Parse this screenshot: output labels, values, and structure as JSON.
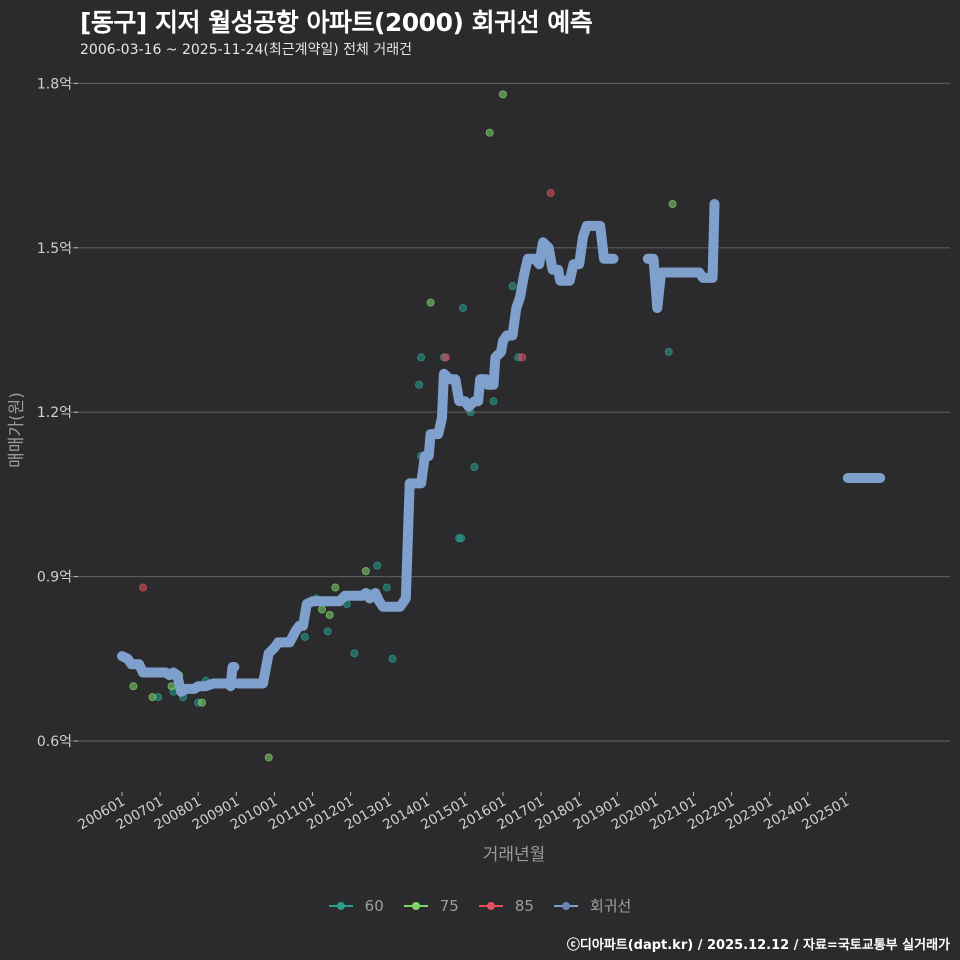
{
  "header": {
    "title": "[동구] 지저 월성공항 아파트(2000) 회귀선 예측",
    "subtitle": "2006-03-16 ~ 2025-11-24(최근계약일) 전체 거래건"
  },
  "footer": {
    "credit": "ⓒ디아파트(dapt.kr) / 2025.12.12 / 자료=국토교통부 실거래가"
  },
  "legend": {
    "items": [
      {
        "label": "60",
        "color": "#2a9d8f"
      },
      {
        "label": "75",
        "color": "#7ed36b"
      },
      {
        "label": "85",
        "color": "#e0505f"
      },
      {
        "label": "회귀선",
        "color": "#7f9fcc"
      }
    ]
  },
  "colors": {
    "background": "#2b2b2d",
    "grid": "#5a5a5a",
    "regression": "#7f9fcc",
    "s60": "#2a9d8f",
    "s75": "#7ed36b",
    "s85": "#e0505f"
  },
  "chart_data": {
    "type": "scatter",
    "title": "[동구] 지저 월성공항 아파트(2000) 회귀선 예측",
    "subtitle": "2006-03-16 ~ 2025-11-24(최근계약일) 전체 거래건",
    "xlabel": "거래년월",
    "ylabel": "매매가(원)",
    "y_ticks": [
      {
        "value": 0.6,
        "label": "0.6억"
      },
      {
        "value": 0.9,
        "label": "0.9억"
      },
      {
        "value": 1.2,
        "label": "1.2억"
      },
      {
        "value": 1.5,
        "label": "1.5억"
      },
      {
        "value": 1.8,
        "label": "1.8억"
      }
    ],
    "x_ticks": [
      "200601",
      "200701",
      "200801",
      "200901",
      "201001",
      "201101",
      "201201",
      "201301",
      "201401",
      "201501",
      "201601",
      "201701",
      "201801",
      "201901",
      "202001",
      "202101",
      "202201",
      "202301",
      "202401",
      "202501"
    ],
    "ylim": [
      0.52,
      1.85
    ],
    "grid": true,
    "legend_position": "bottom",
    "units": "억원",
    "series": [
      {
        "name": "60",
        "type": "scatter",
        "points": [
          [
            2006.95,
            0.68
          ],
          [
            2007.35,
            0.69
          ],
          [
            2007.6,
            0.68
          ],
          [
            2008.0,
            0.67
          ],
          [
            2008.2,
            0.71
          ],
          [
            2010.8,
            0.79
          ],
          [
            2011.1,
            0.86
          ],
          [
            2011.4,
            0.8
          ],
          [
            2011.9,
            0.85
          ],
          [
            2012.1,
            0.76
          ],
          [
            2012.5,
            0.87
          ],
          [
            2012.7,
            0.92
          ],
          [
            2012.95,
            0.88
          ],
          [
            2013.1,
            0.75
          ],
          [
            2013.85,
            1.12
          ],
          [
            2013.85,
            1.3
          ],
          [
            2013.8,
            1.25
          ],
          [
            2014.45,
            1.3
          ],
          [
            2014.85,
            0.97
          ],
          [
            2014.9,
            0.97
          ],
          [
            2014.95,
            1.39
          ],
          [
            2015.15,
            1.2
          ],
          [
            2015.25,
            1.1
          ],
          [
            2015.75,
            1.22
          ],
          [
            2016.4,
            1.3
          ],
          [
            2016.25,
            1.43
          ],
          [
            2020.35,
            1.31
          ]
        ]
      },
      {
        "name": "75",
        "type": "scatter",
        "points": [
          [
            2006.3,
            0.7
          ],
          [
            2006.8,
            0.68
          ],
          [
            2007.3,
            0.7
          ],
          [
            2008.1,
            0.67
          ],
          [
            2009.85,
            0.57
          ],
          [
            2011.25,
            0.84
          ],
          [
            2011.45,
            0.83
          ],
          [
            2011.6,
            0.88
          ],
          [
            2012.4,
            0.91
          ],
          [
            2014.1,
            1.4
          ],
          [
            2015.65,
            1.71
          ],
          [
            2016.0,
            1.78
          ],
          [
            2019.95,
            1.48
          ],
          [
            2020.45,
            1.58
          ],
          [
            2007.5,
            0.72
          ]
        ]
      },
      {
        "name": "85",
        "type": "scatter",
        "points": [
          [
            2006.55,
            0.88
          ],
          [
            2014.5,
            1.3
          ],
          [
            2016.5,
            1.3
          ],
          [
            2017.25,
            1.6
          ]
        ]
      },
      {
        "name": "회귀선",
        "type": "line",
        "segments": [
          [
            [
              2006.0,
              0.755
            ],
            [
              2006.15,
              0.75
            ],
            [
              2006.25,
              0.74
            ],
            [
              2006.45,
              0.74
            ],
            [
              2006.55,
              0.725
            ],
            [
              2007.05,
              0.725
            ],
            [
              2007.15,
              0.725
            ],
            [
              2007.25,
              0.72
            ],
            [
              2007.35,
              0.725
            ],
            [
              2007.45,
              0.72
            ],
            [
              2007.55,
              0.69
            ],
            [
              2007.7,
              0.695
            ],
            [
              2007.9,
              0.695
            ],
            [
              2008.0,
              0.7
            ],
            [
              2008.2,
              0.7
            ],
            [
              2008.4,
              0.705
            ],
            [
              2008.8,
              0.705
            ],
            [
              2008.85,
              0.7
            ],
            [
              2008.9,
              0.735
            ],
            [
              2008.95,
              0.735
            ]
          ],
          [
            [
              2009.05,
              0.705
            ],
            [
              2009.6,
              0.705
            ],
            [
              2009.7,
              0.705
            ],
            [
              2009.85,
              0.76
            ],
            [
              2010.0,
              0.77
            ],
            [
              2010.1,
              0.78
            ],
            [
              2010.4,
              0.78
            ],
            [
              2010.55,
              0.8
            ],
            [
              2010.65,
              0.81
            ],
            [
              2010.75,
              0.81
            ],
            [
              2010.85,
              0.85
            ],
            [
              2011.0,
              0.855
            ],
            [
              2011.7,
              0.855
            ],
            [
              2011.85,
              0.865
            ],
            [
              2012.0,
              0.865
            ],
            [
              2012.3,
              0.865
            ],
            [
              2012.4,
              0.87
            ],
            [
              2012.5,
              0.86
            ],
            [
              2012.65,
              0.87
            ],
            [
              2012.75,
              0.855
            ],
            [
              2012.85,
              0.845
            ],
            [
              2013.3,
              0.845
            ],
            [
              2013.45,
              0.86
            ],
            [
              2013.55,
              1.07
            ],
            [
              2013.85,
              1.07
            ],
            [
              2013.95,
              1.12
            ],
            [
              2014.05,
              1.12
            ],
            [
              2014.1,
              1.16
            ],
            [
              2014.3,
              1.16
            ],
            [
              2014.4,
              1.19
            ],
            [
              2014.45,
              1.27
            ],
            [
              2014.6,
              1.26
            ],
            [
              2014.75,
              1.26
            ],
            [
              2014.85,
              1.22
            ],
            [
              2015.0,
              1.22
            ],
            [
              2015.1,
              1.21
            ],
            [
              2015.25,
              1.22
            ],
            [
              2015.35,
              1.22
            ],
            [
              2015.4,
              1.26
            ],
            [
              2015.55,
              1.26
            ],
            [
              2015.6,
              1.25
            ],
            [
              2015.75,
              1.25
            ],
            [
              2015.8,
              1.3
            ],
            [
              2015.95,
              1.31
            ],
            [
              2016.0,
              1.33
            ],
            [
              2016.1,
              1.34
            ],
            [
              2016.25,
              1.34
            ],
            [
              2016.35,
              1.39
            ],
            [
              2016.45,
              1.41
            ],
            [
              2016.55,
              1.45
            ],
            [
              2016.65,
              1.48
            ],
            [
              2016.85,
              1.48
            ],
            [
              2016.95,
              1.47
            ],
            [
              2017.05,
              1.51
            ],
            [
              2017.2,
              1.5
            ],
            [
              2017.3,
              1.46
            ],
            [
              2017.45,
              1.46
            ],
            [
              2017.5,
              1.44
            ],
            [
              2017.75,
              1.44
            ],
            [
              2017.85,
              1.47
            ],
            [
              2018.0,
              1.47
            ],
            [
              2018.1,
              1.52
            ],
            [
              2018.2,
              1.54
            ],
            [
              2018.55,
              1.54
            ],
            [
              2018.65,
              1.48
            ],
            [
              2018.9,
              1.48
            ]
          ],
          [
            [
              2019.8,
              1.48
            ],
            [
              2019.95,
              1.48
            ],
            [
              2020.05,
              1.39
            ],
            [
              2020.15,
              1.455
            ],
            [
              2020.4,
              1.455
            ],
            [
              2021.0,
              1.455
            ],
            [
              2021.15,
              1.455
            ],
            [
              2021.25,
              1.445
            ],
            [
              2021.5,
              1.445
            ],
            [
              2021.55,
              1.58
            ]
          ],
          [
            [
              2025.05,
              1.08
            ],
            [
              2025.9,
              1.08
            ]
          ]
        ]
      }
    ]
  }
}
